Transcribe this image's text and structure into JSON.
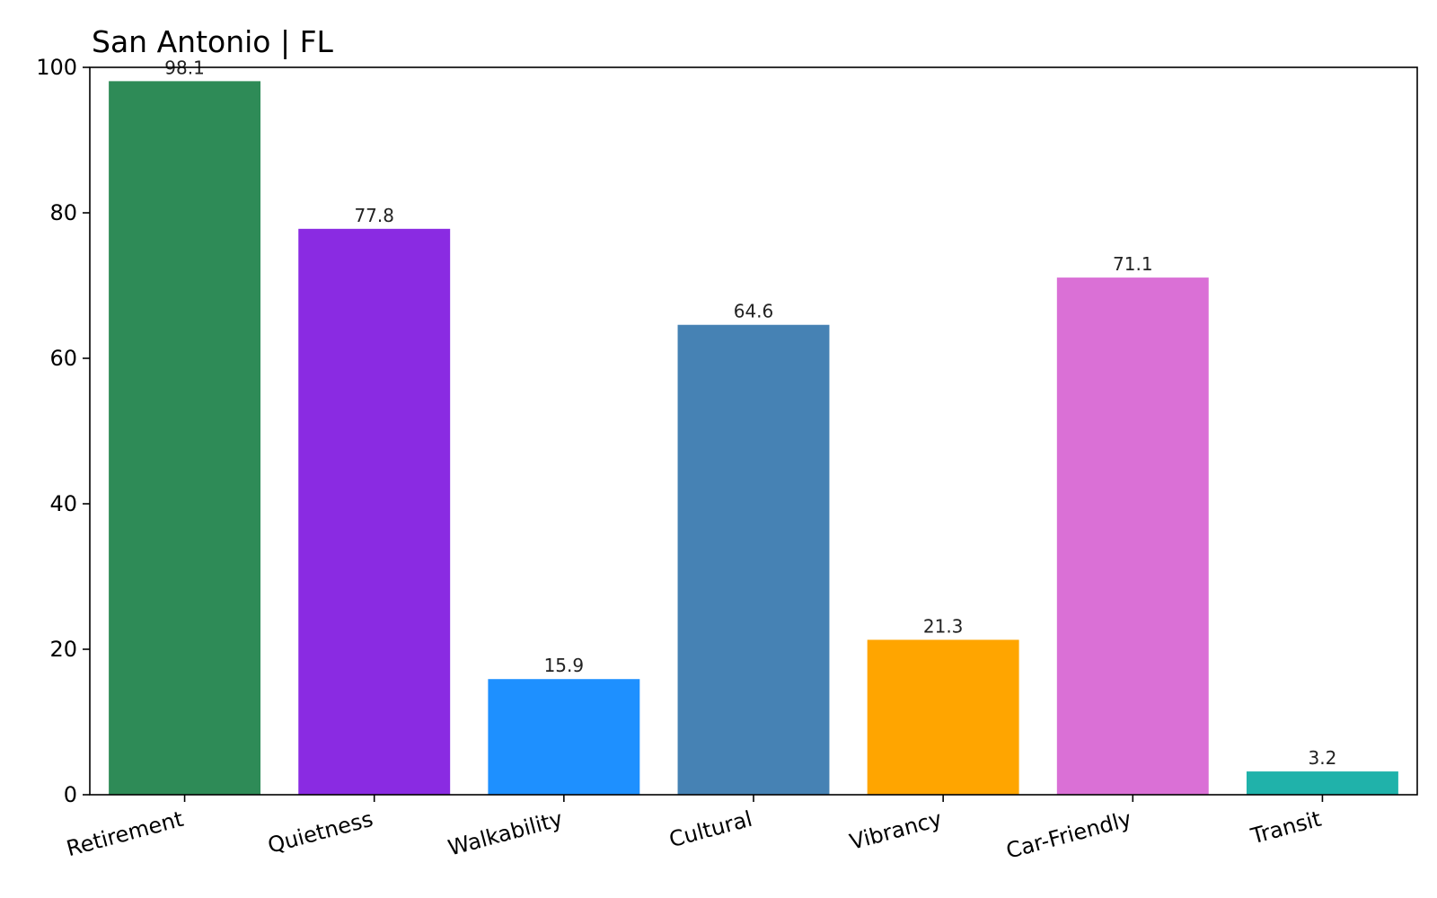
{
  "chart_data": {
    "type": "bar",
    "title": "San Antonio | FL",
    "xlabel": "",
    "ylabel": "",
    "categories": [
      "Retirement",
      "Quietness",
      "Walkability",
      "Cultural",
      "Vibrancy",
      "Car-Friendly",
      "Transit"
    ],
    "values": [
      98.1,
      77.8,
      15.9,
      64.6,
      21.3,
      71.1,
      3.2
    ],
    "value_labels": [
      "98.1",
      "77.8",
      "15.9",
      "64.6",
      "21.3",
      "71.1",
      "3.2"
    ],
    "colors": [
      "#2e8b57",
      "#8a2be2",
      "#1e90ff",
      "#4682b4",
      "#ffa500",
      "#da70d6",
      "#20b2aa"
    ],
    "ylim": [
      0,
      100
    ],
    "yticks": [
      0,
      20,
      40,
      60,
      80,
      100
    ],
    "ytick_labels": [
      "0",
      "20",
      "40",
      "60",
      "80",
      "100"
    ],
    "grid": false,
    "legend": "none"
  }
}
